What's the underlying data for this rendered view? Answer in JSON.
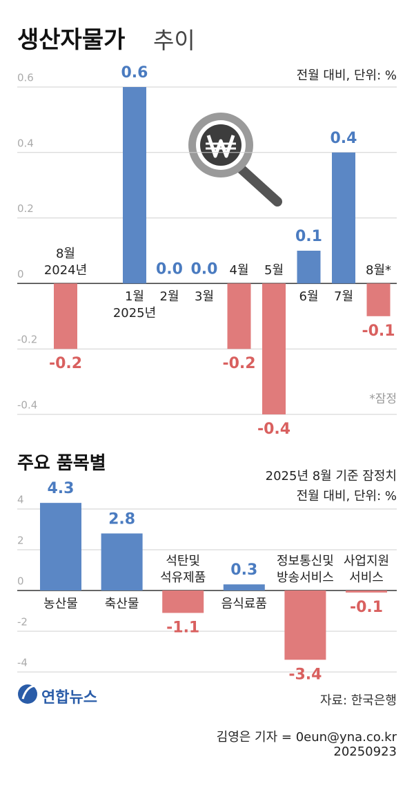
{
  "logo": "연합뉴스",
  "source": "자료: 한국은행",
  "byline": "김영은 기자 = 0eun@yna.co.kr",
  "date": "20250923",
  "chart_data": [
    {
      "type": "bar",
      "title": "생산자물가",
      "title_suffix": "추이",
      "note": "전월 대비, 단위: %",
      "footnote": "*잠정",
      "categories": [
        "8월\n2024년",
        "1월\n2025년",
        "2월",
        "3월",
        "4월",
        "5월",
        "6월",
        "7월",
        "8월*"
      ],
      "values": [
        -0.2,
        0.6,
        0.0,
        0.0,
        -0.2,
        -0.4,
        0.1,
        0.4,
        -0.1
      ],
      "value_labels": [
        "-0.2",
        "0.6",
        "0.0",
        "0.0",
        "-0.2",
        "-0.4",
        "0.1",
        "0.4",
        "-0.1"
      ],
      "ylim": [
        -0.4,
        0.6
      ],
      "yticks": [
        -0.4,
        -0.2,
        0,
        0.2,
        0.4,
        0.6
      ],
      "grid": true,
      "color_positive": "#5b87c5",
      "color_negative": "#e07b7b"
    },
    {
      "type": "bar",
      "title": "주요 품목별",
      "subtitle": "2025년 8월 기준 잠정치",
      "note": "전월 대비, 단위: %",
      "categories": [
        "농산물",
        "축산물",
        "석탄및\n석유제품",
        "음식료품",
        "정보통신및\n방송서비스",
        "사업지원\n서비스"
      ],
      "values": [
        4.3,
        2.8,
        -1.1,
        0.3,
        -3.4,
        -0.1
      ],
      "ylim": [
        -4,
        4
      ],
      "yticks": [
        -4,
        -2,
        0,
        2,
        4
      ],
      "grid": true,
      "color_positive": "#5b87c5",
      "color_negative": "#e07b7b"
    }
  ]
}
